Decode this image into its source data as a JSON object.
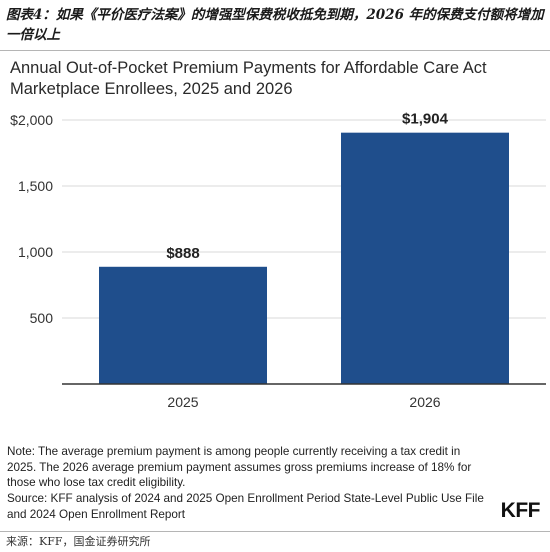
{
  "figure_caption": "图表4：如果《平价医疗法案》的增强型保费税收抵免到期，2026 年的保费支付额将增加一倍以上",
  "note": "Note: The average premium payment is among people currently receiving a tax credit in 2025. The 2026 average premium payment assumes gross premiums increase of 18% for those who lose tax credit eligibility.",
  "source": "Source: KFF analysis of 2024 and 2025 Open Enrollment Period State-Level Public Use File and 2024 Open Enrollment Report",
  "logo": "KFF",
  "footer_source": "来源：KFF，国金证券研究所",
  "chart_data": {
    "type": "bar",
    "title": "Annual Out-of-Pocket Premium Payments for Affordable Care Act Marketplace Enrollees, 2025 and 2026",
    "categories": [
      "2025",
      "2026"
    ],
    "values": [
      888,
      1904
    ],
    "data_labels": [
      "$888",
      "$1,904"
    ],
    "ylim": [
      0,
      2000
    ],
    "yticks": [
      500,
      1000,
      1500,
      2000
    ],
    "ytick_labels": [
      "500",
      "1,000",
      "1,500",
      "$2,000"
    ],
    "grid": true,
    "bar_color": "#1f4e8c",
    "grid_color": "#d9d9d9",
    "axis_color": "#333333",
    "legend": "none"
  }
}
